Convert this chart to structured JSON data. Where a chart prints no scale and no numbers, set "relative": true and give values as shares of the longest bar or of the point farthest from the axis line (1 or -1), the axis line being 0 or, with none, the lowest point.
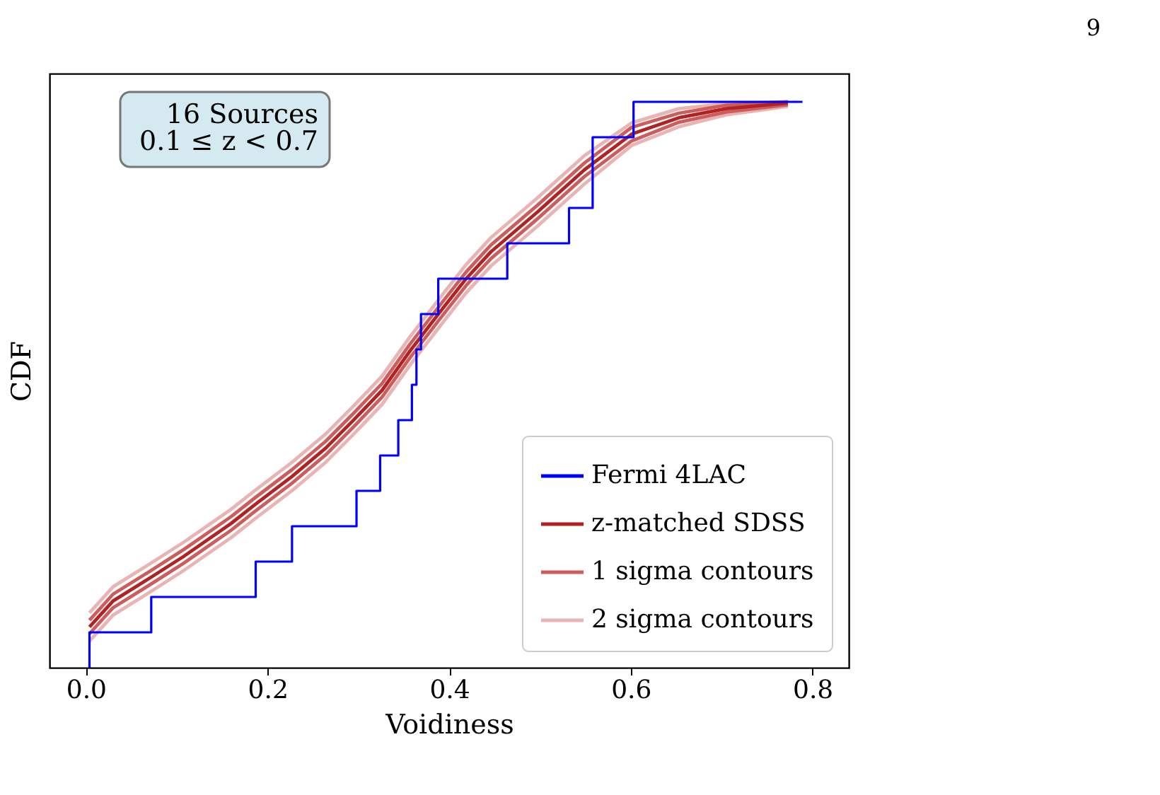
{
  "chart_data": {
    "type": "line",
    "xlabel": "Voidiness",
    "ylabel": "CDF",
    "relative": true,
    "tick_labels": "x",
    "grid": false,
    "legend": "bottom right",
    "line_style": "solid",
    "xlim": [
      -0.04,
      0.84
    ],
    "xticks": [
      {
        "value": 0,
        "label": "0.0"
      },
      0.2,
      0.4,
      0.6,
      0.8
    ],
    "annotations": [
      "16 Sources\n0.1 ≤ z < 0.7",
      "9"
    ],
    "series": [
      {
        "name": "Fermi 4LAC",
        "type": "step",
        "color": "#0000ff",
        "x": [
          0.004,
          0.004,
          0.072,
          0.187,
          0.227,
          0.298,
          0.324,
          0.344,
          0.359,
          0.364,
          0.369,
          0.388,
          0.464,
          0.532,
          0.558,
          0.603,
          0.789
        ],
        "values": [
          0,
          0.0625,
          0.125,
          0.1875,
          0.25,
          0.3125,
          0.375,
          0.4375,
          0.5,
          0.5625,
          0.625,
          0.6875,
          0.75,
          0.8125,
          0.9375,
          1,
          1
        ]
      },
      {
        "name": "z-matched SDSS",
        "color": "#b22222",
        "x": [
          0.004,
          0.03,
          0.071,
          0.108,
          0.16,
          0.186,
          0.227,
          0.264,
          0.295,
          0.326,
          0.357,
          0.393,
          0.419,
          0.446,
          0.497,
          0.549,
          0.601,
          0.653,
          0.705,
          0.773
        ],
        "values": [
          0.072,
          0.118,
          0.159,
          0.197,
          0.255,
          0.288,
          0.338,
          0.388,
          0.438,
          0.49,
          0.56,
          0.635,
          0.688,
          0.735,
          0.805,
          0.88,
          0.943,
          0.972,
          0.988,
          0.998
        ]
      },
      {
        "name": "1 sigma contours",
        "color": "#cd5c5c",
        "x": [
          0.004,
          0.03,
          0.071,
          0.108,
          0.16,
          0.186,
          0.227,
          0.264,
          0.295,
          0.326,
          0.357,
          0.393,
          0.419,
          0.446,
          0.497,
          0.549,
          0.601,
          0.653,
          0.705,
          0.773
        ],
        "values": [
          0.084,
          0.13,
          0.171,
          0.209,
          0.267,
          0.3,
          0.35,
          0.4,
          0.45,
          0.502,
          0.572,
          0.647,
          0.7,
          0.747,
          0.817,
          0.892,
          0.955,
          0.98,
          0.994,
          1.0
        ]
      },
      {
        "color": "#cd5c5c",
        "x": [
          0.004,
          0.03,
          0.071,
          0.108,
          0.16,
          0.186,
          0.227,
          0.264,
          0.295,
          0.326,
          0.357,
          0.393,
          0.419,
          0.446,
          0.497,
          0.549,
          0.601,
          0.653,
          0.705,
          0.773
        ],
        "values": [
          0.06,
          0.106,
          0.147,
          0.185,
          0.243,
          0.276,
          0.326,
          0.376,
          0.426,
          0.478,
          0.548,
          0.623,
          0.676,
          0.723,
          0.793,
          0.868,
          0.931,
          0.964,
          0.982,
          0.995
        ]
      },
      {
        "name": "2 sigma contours",
        "color": "#e8b4b4",
        "x": [
          0.004,
          0.03,
          0.071,
          0.108,
          0.16,
          0.186,
          0.227,
          0.264,
          0.295,
          0.326,
          0.357,
          0.393,
          0.419,
          0.446,
          0.497,
          0.549,
          0.601,
          0.653,
          0.705,
          0.773
        ],
        "values": [
          0.097,
          0.143,
          0.184,
          0.222,
          0.28,
          0.313,
          0.363,
          0.413,
          0.463,
          0.515,
          0.585,
          0.66,
          0.713,
          0.76,
          0.83,
          0.905,
          0.963,
          0.988,
          0.997,
          1.0
        ]
      },
      {
        "color": "#e8b4b4",
        "x": [
          0.004,
          0.03,
          0.071,
          0.108,
          0.16,
          0.186,
          0.227,
          0.264,
          0.295,
          0.326,
          0.357,
          0.393,
          0.419,
          0.446,
          0.497,
          0.549,
          0.601,
          0.653,
          0.705,
          0.773
        ],
        "values": [
          0.047,
          0.093,
          0.134,
          0.172,
          0.23,
          0.263,
          0.313,
          0.363,
          0.413,
          0.465,
          0.535,
          0.61,
          0.663,
          0.71,
          0.78,
          0.855,
          0.923,
          0.956,
          0.977,
          0.992
        ]
      }
    ]
  }
}
